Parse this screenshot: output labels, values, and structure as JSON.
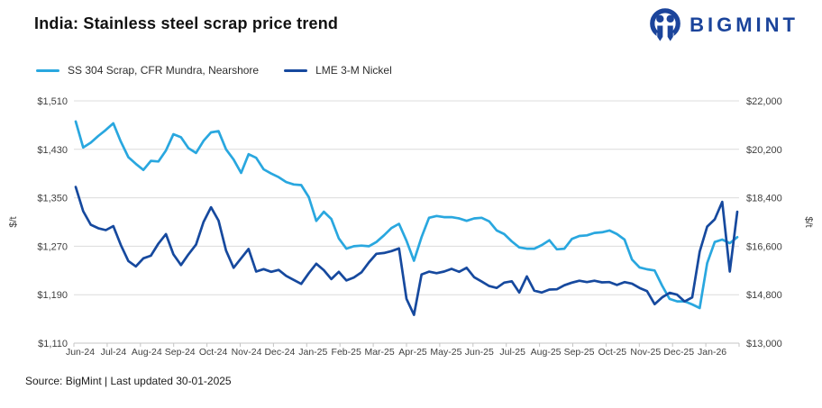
{
  "header": {
    "title": "India: Stainless steel scrap price trend",
    "brand": "BIGMINT",
    "brand_color": "#1B449B"
  },
  "footer": {
    "source": "Source: BigMint | Last updated 30-01-2025"
  },
  "colors": {
    "grid": "#dcdcdc",
    "axis_line": "#c4c4c4",
    "axis_text": "#3f3f3f"
  },
  "chart_data": {
    "type": "line",
    "title": "India: Stainless steel scrap price trend",
    "grid": true,
    "legend_position": "top-left",
    "x_labels": [
      "Jun-24",
      "Jul-24",
      "Aug-24",
      "Sep-24",
      "Oct-24",
      "Nov-24",
      "Dec-24",
      "Jan-25",
      "Feb-25",
      "Mar-25",
      "Apr-25",
      "May-25",
      "Jun-25",
      "Jul-25",
      "Aug-25",
      "Sep-25",
      "Oct-25",
      "Nov-25",
      "Dec-25",
      "Jan-26"
    ],
    "left_axis": {
      "label": "$/t",
      "min": 1110,
      "max": 1510,
      "ticks": [
        "$1,510",
        "$1,430",
        "$1,350",
        "$1,270",
        "$1,190",
        "$1,110"
      ],
      "tick_values": [
        1510,
        1430,
        1350,
        1270,
        1190,
        1110
      ]
    },
    "right_axis": {
      "label": "$/t",
      "min": 13000,
      "max": 22000,
      "ticks": [
        "$22,000",
        "$20,200",
        "$18,400",
        "$16,600",
        "$14,800",
        "$13,000"
      ],
      "tick_values": [
        22000,
        20200,
        18400,
        16600,
        14800,
        13000
      ]
    },
    "series": [
      {
        "name": "SS 304 Scrap, CFR Mundra, Nearshore",
        "axis": "left",
        "unit": "$/t",
        "color": "#29A7DF",
        "values": [
          1476,
          1433,
          1441,
          1452,
          1462,
          1473,
          1443,
          1417,
          1406,
          1396,
          1411,
          1410,
          1428,
          1455,
          1450,
          1432,
          1424,
          1444,
          1458,
          1460,
          1430,
          1413,
          1391,
          1422,
          1416,
          1397,
          1390,
          1384,
          1376,
          1372,
          1371,
          1351,
          1312,
          1327,
          1315,
          1283,
          1266,
          1270,
          1271,
          1270,
          1277,
          1288,
          1300,
          1307,
          1279,
          1246,
          1285,
          1317,
          1320,
          1318,
          1318,
          1316,
          1312,
          1316,
          1317,
          1311,
          1296,
          1290,
          1278,
          1268,
          1266,
          1266,
          1272,
          1280,
          1265,
          1266,
          1282,
          1287,
          1288,
          1292,
          1293,
          1296,
          1290,
          1281,
          1248,
          1235,
          1232,
          1230,
          1205,
          1183,
          1179,
          1179,
          1174,
          1168,
          1242,
          1277,
          1281,
          1275,
          1285
        ]
      },
      {
        "name": "LME 3-M Nickel",
        "axis": "right",
        "unit": "$/t",
        "color": "#16499E",
        "values": [
          18800,
          17900,
          17400,
          17270,
          17200,
          17350,
          16650,
          16050,
          15850,
          16150,
          16250,
          16700,
          17050,
          16300,
          15900,
          16300,
          16660,
          17500,
          18050,
          17550,
          16440,
          15800,
          16150,
          16500,
          15660,
          15750,
          15650,
          15720,
          15500,
          15350,
          15200,
          15600,
          15950,
          15710,
          15380,
          15650,
          15330,
          15440,
          15630,
          16000,
          16320,
          16350,
          16420,
          16520,
          14645,
          14050,
          15550,
          15655,
          15600,
          15660,
          15760,
          15650,
          15800,
          15450,
          15290,
          15120,
          15050,
          15250,
          15300,
          14880,
          15480,
          14950,
          14880,
          14990,
          15000,
          15150,
          15250,
          15320,
          15270,
          15320,
          15260,
          15270,
          15160,
          15270,
          15210,
          15050,
          14930,
          14450,
          14700,
          14870,
          14800,
          14550,
          14700,
          16400,
          17330,
          17600,
          18250,
          15660,
          17880
        ]
      }
    ]
  }
}
